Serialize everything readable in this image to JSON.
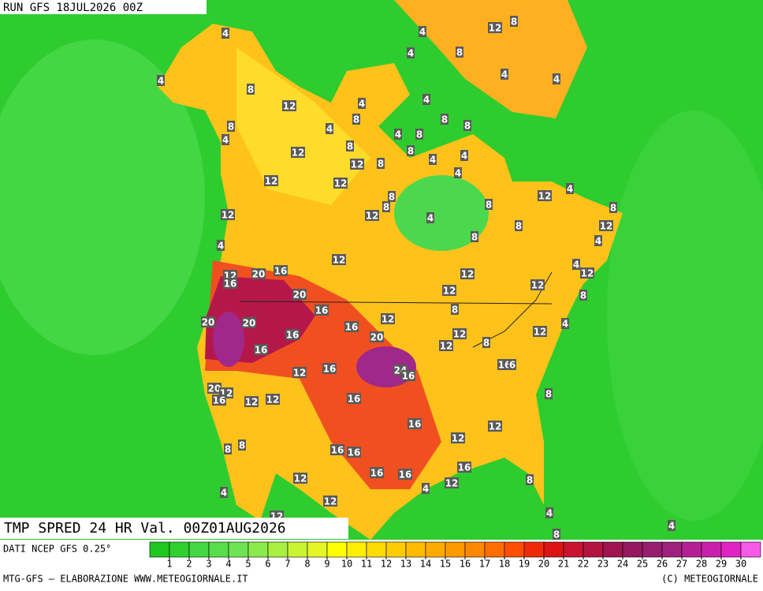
{
  "header": {
    "run": "RUN GFS 18JUL2026 00Z"
  },
  "map": {
    "title": "TMP SPRED 24 HR Val. 00Z01AUG2026",
    "contour_labels": [
      4,
      4,
      12,
      8,
      4,
      8,
      4,
      4,
      4,
      8,
      12,
      4,
      4,
      8,
      8,
      8,
      4,
      4,
      8,
      8,
      4,
      12,
      8,
      8,
      4,
      4,
      12,
      8,
      4,
      12,
      12,
      12,
      4,
      8,
      8,
      8,
      12,
      12,
      4,
      8,
      8,
      12,
      8,
      4,
      4,
      12,
      4,
      12,
      12,
      16,
      20,
      16,
      12,
      12,
      12,
      8,
      20,
      20,
      20,
      16,
      8,
      12,
      16,
      16,
      20,
      12,
      12,
      8,
      12,
      4,
      16,
      16,
      24,
      16,
      12,
      16,
      6,
      20,
      12,
      16,
      12,
      12,
      16,
      8,
      16,
      12,
      12,
      8,
      8,
      16,
      16,
      12,
      16,
      16,
      16,
      12,
      4,
      8,
      4,
      12,
      4,
      12,
      8,
      4
    ]
  },
  "colorbar": {
    "source": "DATI NCEP GFS 0.25°",
    "colors": [
      "#1ec81e",
      "#30d030",
      "#44d844",
      "#58de4a",
      "#6ee454",
      "#8ceb4c",
      "#aaf040",
      "#c8f432",
      "#e4f626",
      "#ffff00",
      "#ffee00",
      "#ffdc00",
      "#ffcc00",
      "#ffbb00",
      "#ffaa00",
      "#ff9900",
      "#ff8800",
      "#ff6e00",
      "#ff4e00",
      "#f02a08",
      "#dc1414",
      "#c8142e",
      "#b41440",
      "#a01450",
      "#96185e",
      "#961e6e",
      "#a0207e",
      "#b42094",
      "#c820aa",
      "#e024c4",
      "#f85ae8"
    ],
    "ticks": [
      1,
      2,
      3,
      4,
      5,
      6,
      7,
      8,
      9,
      10,
      11,
      12,
      13,
      14,
      15,
      16,
      17,
      18,
      19,
      20,
      21,
      22,
      23,
      24,
      25,
      26,
      27,
      28,
      29,
      30
    ]
  },
  "footer": {
    "left": "MTG-GFS — ELABORAZIONE WWW.METEOGIORNALE.IT",
    "right": "(C) METEOGIORNALE"
  }
}
